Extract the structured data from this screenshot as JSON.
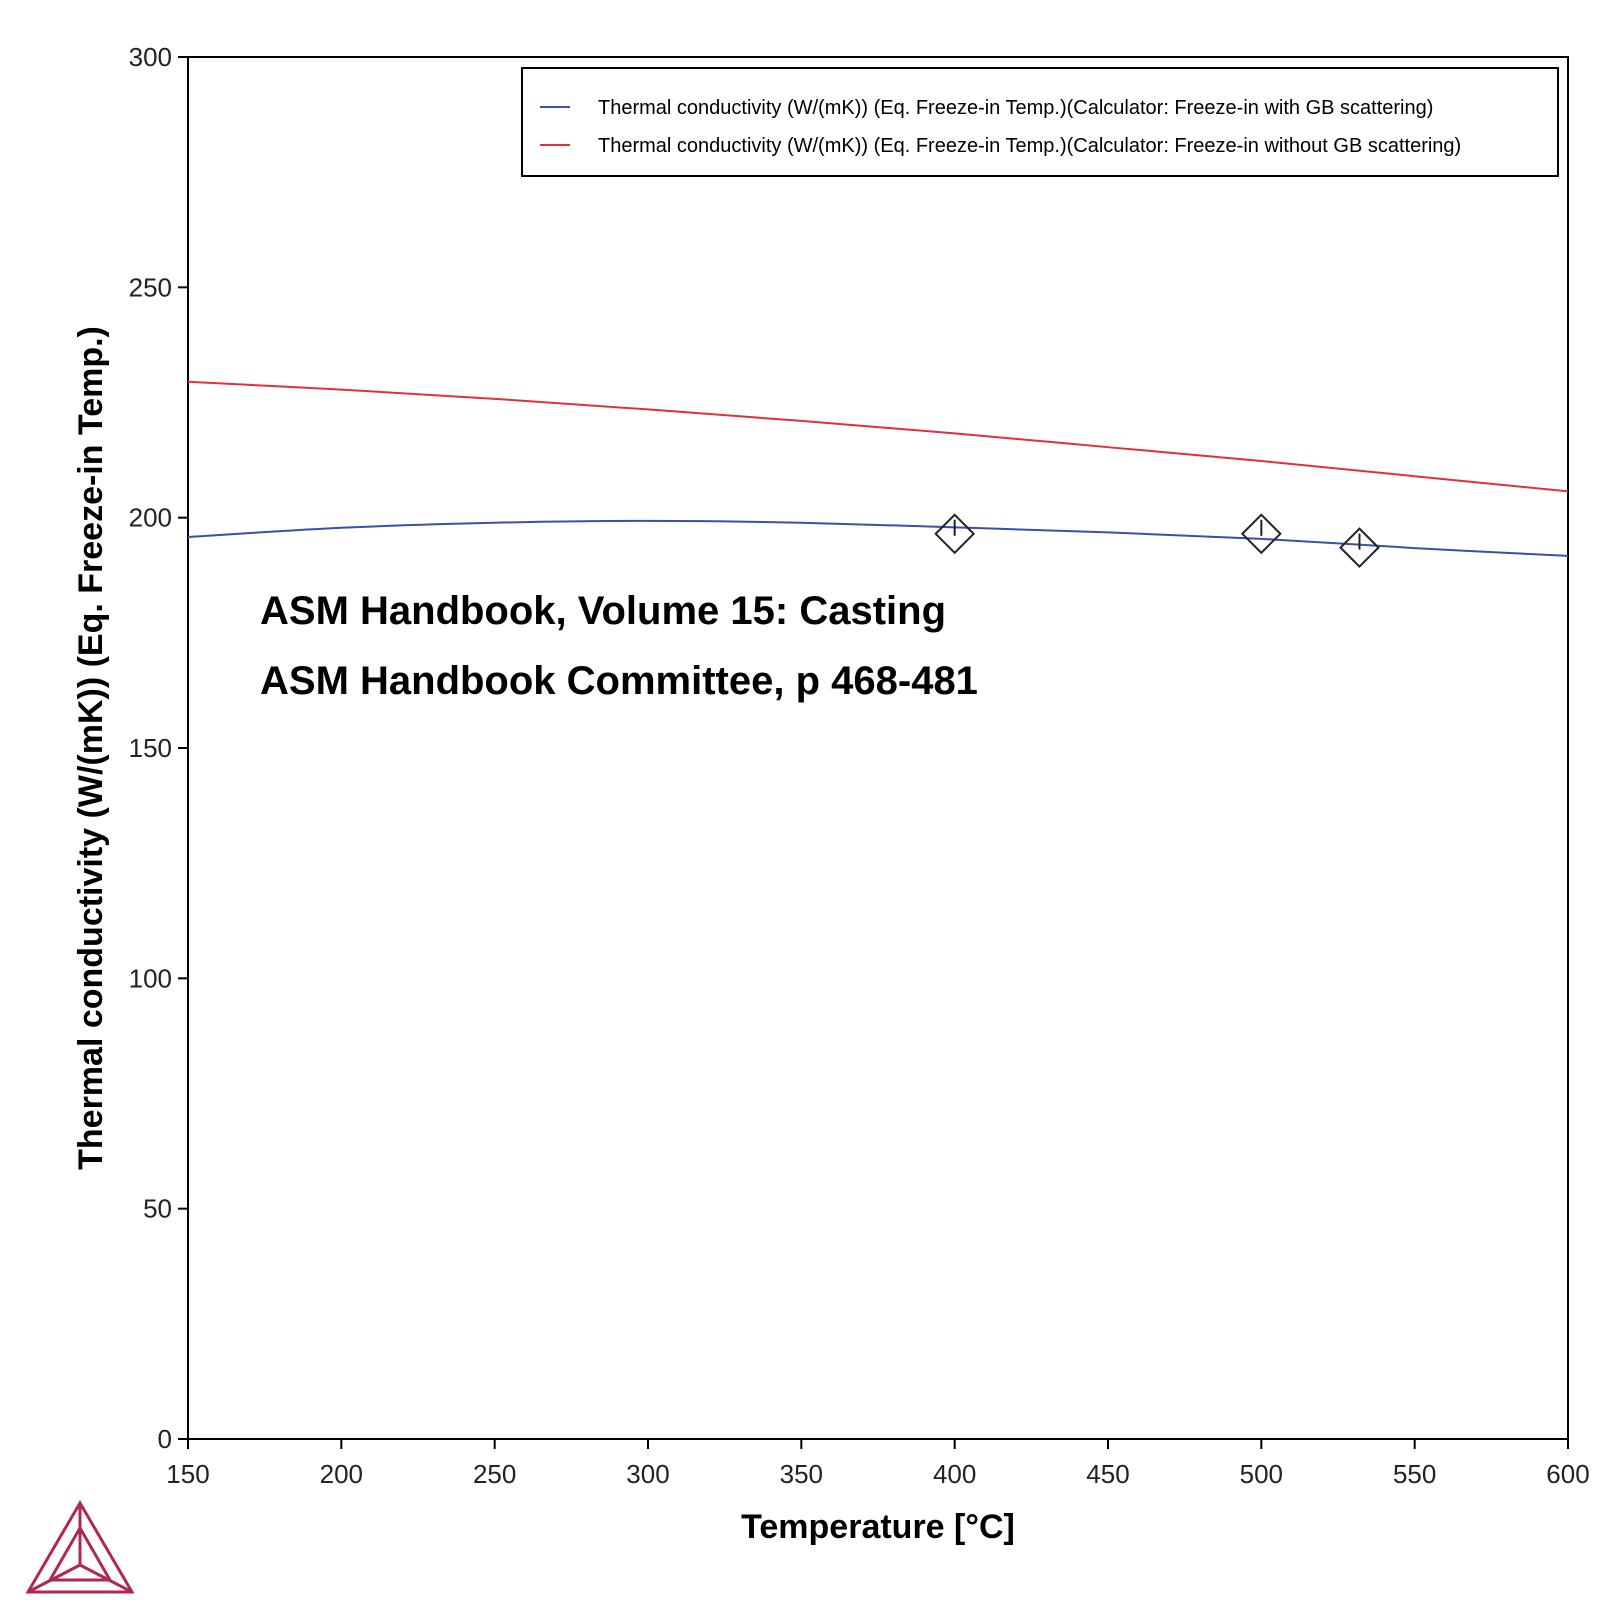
{
  "chart_data": {
    "type": "line",
    "xlabel": "Temperature [°C]",
    "ylabel": "Thermal conductivity (W/(mK)) (Eq. Freeze-in Temp.)",
    "xlim": [
      150,
      600
    ],
    "ylim": [
      0,
      300
    ],
    "xticks": [
      150,
      200,
      250,
      300,
      350,
      400,
      450,
      500,
      550,
      600
    ],
    "yticks": [
      0,
      50,
      100,
      150,
      200,
      250,
      300
    ],
    "grid": false,
    "legend_position": "top-right",
    "series": [
      {
        "name": "Thermal conductivity (W/(mK)) (Eq. Freeze-in Temp.)(Calculator: Freeze-in with GB scattering)",
        "color": "#3a4fa8",
        "x": [
          150,
          200,
          250,
          300,
          350,
          400,
          450,
          500,
          550,
          600
        ],
        "y": [
          195.8,
          197.8,
          198.9,
          199.3,
          198.9,
          197.9,
          196.8,
          195.4,
          193.4,
          191.7
        ]
      },
      {
        "name": "Thermal conductivity (W/(mK)) (Eq. Freeze-in Temp.)(Calculator: Freeze-in without GB scattering)",
        "color": "#e03040",
        "x": [
          150,
          200,
          250,
          300,
          350,
          400,
          450,
          500,
          550,
          600
        ],
        "y": [
          229.5,
          227.8,
          225.8,
          223.5,
          221.0,
          218.3,
          215.3,
          212.3,
          209.0,
          205.7
        ]
      }
    ],
    "experimental_points": [
      {
        "x": 400,
        "y": 196.5
      },
      {
        "x": 500,
        "y": 196.5
      },
      {
        "x": 532,
        "y": 193.5
      }
    ],
    "annotations": [
      "ASM Handbook, Volume 15: Casting",
      "ASM Handbook Committee, p 468-481"
    ]
  },
  "logo": {
    "name": "thermo-calc-logo-icon",
    "color": "#b0284f"
  }
}
